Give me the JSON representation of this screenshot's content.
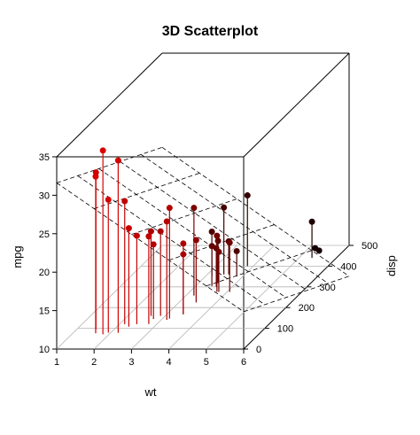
{
  "chart_data": {
    "type": "scatter",
    "title": "3D Scatterplot",
    "xlabel": "wt",
    "ylabel": "disp",
    "zlabel": "mpg",
    "xlim": [
      1,
      6
    ],
    "ylim": [
      0,
      500
    ],
    "zlim": [
      10,
      35
    ],
    "x_ticks": [
      "1",
      "2",
      "3",
      "4",
      "5",
      "6"
    ],
    "y_ticks": [
      "0",
      "100",
      "200",
      "300",
      "400",
      "500"
    ],
    "z_ticks": [
      "10",
      "15",
      "20",
      "25",
      "30",
      "35"
    ],
    "grid": true,
    "regression_plane": true,
    "point_color_low": "#000000",
    "point_color_high": "#ff0000",
    "points": [
      {
        "x": 2.62,
        "y": 160,
        "z": 21.0
      },
      {
        "x": 2.875,
        "y": 160,
        "z": 21.0
      },
      {
        "x": 2.32,
        "y": 108,
        "z": 22.8
      },
      {
        "x": 3.215,
        "y": 258,
        "z": 21.4
      },
      {
        "x": 3.44,
        "y": 360,
        "z": 18.7
      },
      {
        "x": 3.46,
        "y": 225,
        "z": 18.1
      },
      {
        "x": 3.57,
        "y": 360,
        "z": 14.3
      },
      {
        "x": 3.19,
        "y": 146.7,
        "z": 24.4
      },
      {
        "x": 3.15,
        "y": 140.8,
        "z": 22.8
      },
      {
        "x": 3.44,
        "y": 167.6,
        "z": 19.2
      },
      {
        "x": 3.44,
        "y": 167.6,
        "z": 17.8
      },
      {
        "x": 4.07,
        "y": 275.8,
        "z": 16.4
      },
      {
        "x": 3.73,
        "y": 275.8,
        "z": 17.3
      },
      {
        "x": 3.78,
        "y": 275.8,
        "z": 15.2
      },
      {
        "x": 5.25,
        "y": 472,
        "z": 10.4
      },
      {
        "x": 5.424,
        "y": 460,
        "z": 10.4
      },
      {
        "x": 5.345,
        "y": 440,
        "z": 14.7
      },
      {
        "x": 2.2,
        "y": 78.7,
        "z": 32.4
      },
      {
        "x": 1.615,
        "y": 75.7,
        "z": 30.4
      },
      {
        "x": 1.835,
        "y": 71.1,
        "z": 33.9
      },
      {
        "x": 2.465,
        "y": 120.1,
        "z": 21.5
      },
      {
        "x": 3.52,
        "y": 318,
        "z": 15.5
      },
      {
        "x": 3.435,
        "y": 304,
        "z": 15.2
      },
      {
        "x": 3.84,
        "y": 350,
        "z": 13.3
      },
      {
        "x": 3.845,
        "y": 400,
        "z": 19.2
      },
      {
        "x": 1.935,
        "y": 79,
        "z": 27.3
      },
      {
        "x": 2.14,
        "y": 120.3,
        "z": 26.0
      },
      {
        "x": 1.513,
        "y": 95.1,
        "z": 30.4
      },
      {
        "x": 3.17,
        "y": 351,
        "z": 15.8
      },
      {
        "x": 2.77,
        "y": 145,
        "z": 19.7
      },
      {
        "x": 3.57,
        "y": 301,
        "z": 15.0
      },
      {
        "x": 2.78,
        "y": 121,
        "z": 21.4
      }
    ]
  }
}
